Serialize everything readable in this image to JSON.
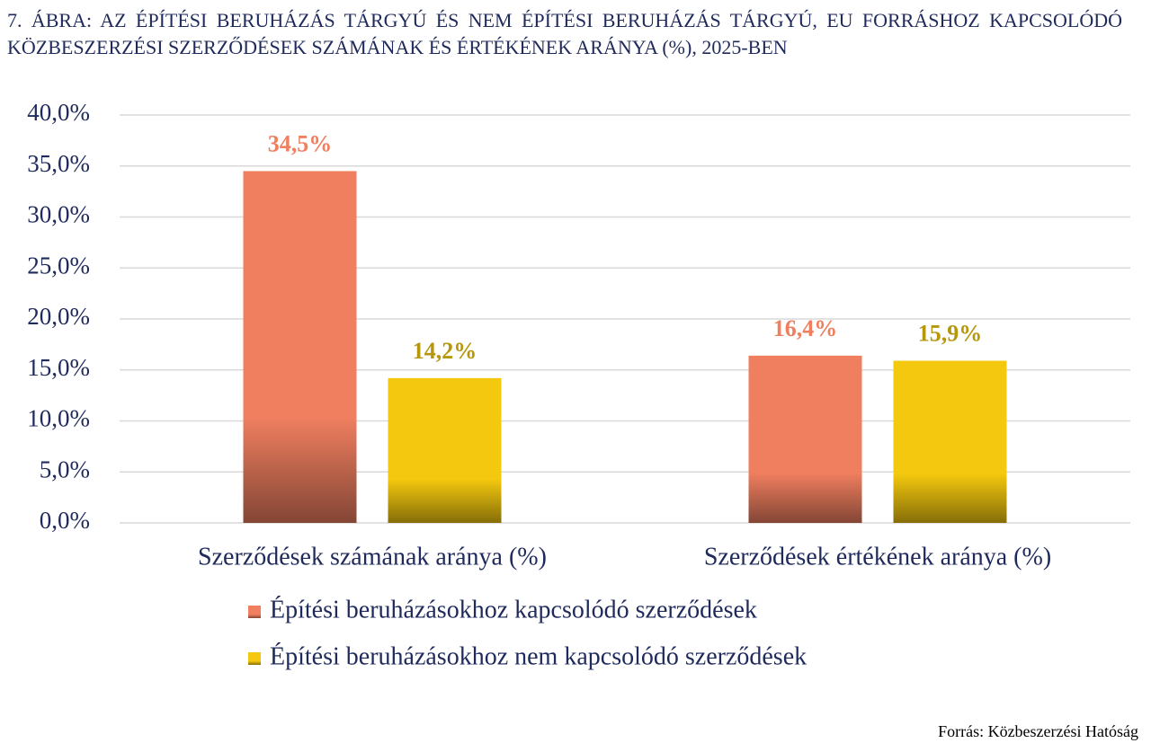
{
  "chart_data": {
    "type": "bar",
    "title": "7.  ÁBRA: AZ ÉPÍTÉSI BERUHÁZÁS TÁRGYÚ ÉS NEM ÉPÍTÉSI BERUHÁZÁS TÁRGYÚ, EU FORRÁSHOZ KAPCSOLÓDÓ KÖZBESZERZÉSI SZERZŐDÉSEK SZÁMÁNAK ÉS ÉRTÉKÉNEK ARÁNYA (%), 2025-BEN",
    "categories": [
      "Szerződések számának aránya (%)",
      "Szerződések értékének aránya (%)"
    ],
    "series": [
      {
        "name": "Építési beruházásokhoz kapcsolódó szerződések",
        "color": "#f07f60",
        "values": [
          34.5,
          16.4
        ],
        "value_labels": [
          "34,5%",
          "16,4%"
        ]
      },
      {
        "name": "Építési beruházásokhoz nem kapcsolódó szerződések",
        "color": "#f3c80e",
        "values": [
          14.2,
          15.9
        ],
        "value_labels": [
          "14,2%",
          "15,9%"
        ]
      }
    ],
    "ylim": [
      0,
      40
    ],
    "yticks": [
      {
        "value": 0,
        "label": "0,0%"
      },
      {
        "value": 5,
        "label": "5,0%"
      },
      {
        "value": 10,
        "label": "10,0%"
      },
      {
        "value": 15,
        "label": "15,0%"
      },
      {
        "value": 20,
        "label": "20,0%"
      },
      {
        "value": 25,
        "label": "25,0%"
      },
      {
        "value": 30,
        "label": "30,0%"
      },
      {
        "value": 35,
        "label": "35,0%"
      },
      {
        "value": 40,
        "label": "40,0%"
      }
    ],
    "grid": true,
    "legend": "bottom",
    "source": "Forrás: Közbeszerzési Hatóság"
  }
}
